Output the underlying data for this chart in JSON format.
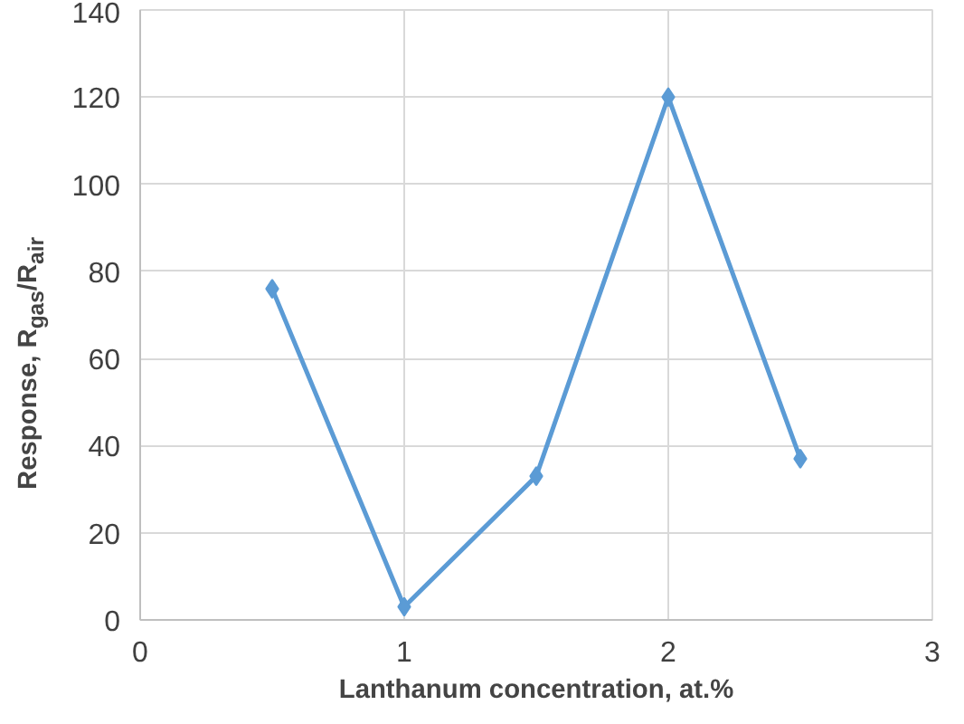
{
  "chart_data": {
    "type": "line",
    "xlabel": "Lanthanum concentration, at.%",
    "ylabel": "Response, R$_{gas}$/R$_{air}$",
    "x": [
      0.5,
      1,
      1.5,
      2,
      2.5
    ],
    "series": [
      {
        "color": "#5b9bd5",
        "values": [
          76,
          3,
          33,
          120,
          37
        ]
      }
    ],
    "xlim": [
      0,
      3
    ],
    "xticks": [
      0,
      1,
      2,
      3
    ],
    "ylim": [
      0,
      140
    ],
    "yticks": [
      0,
      20,
      40,
      60,
      80,
      100,
      120,
      140
    ],
    "grid": true,
    "marker": "diamond",
    "line_style": "solid"
  }
}
